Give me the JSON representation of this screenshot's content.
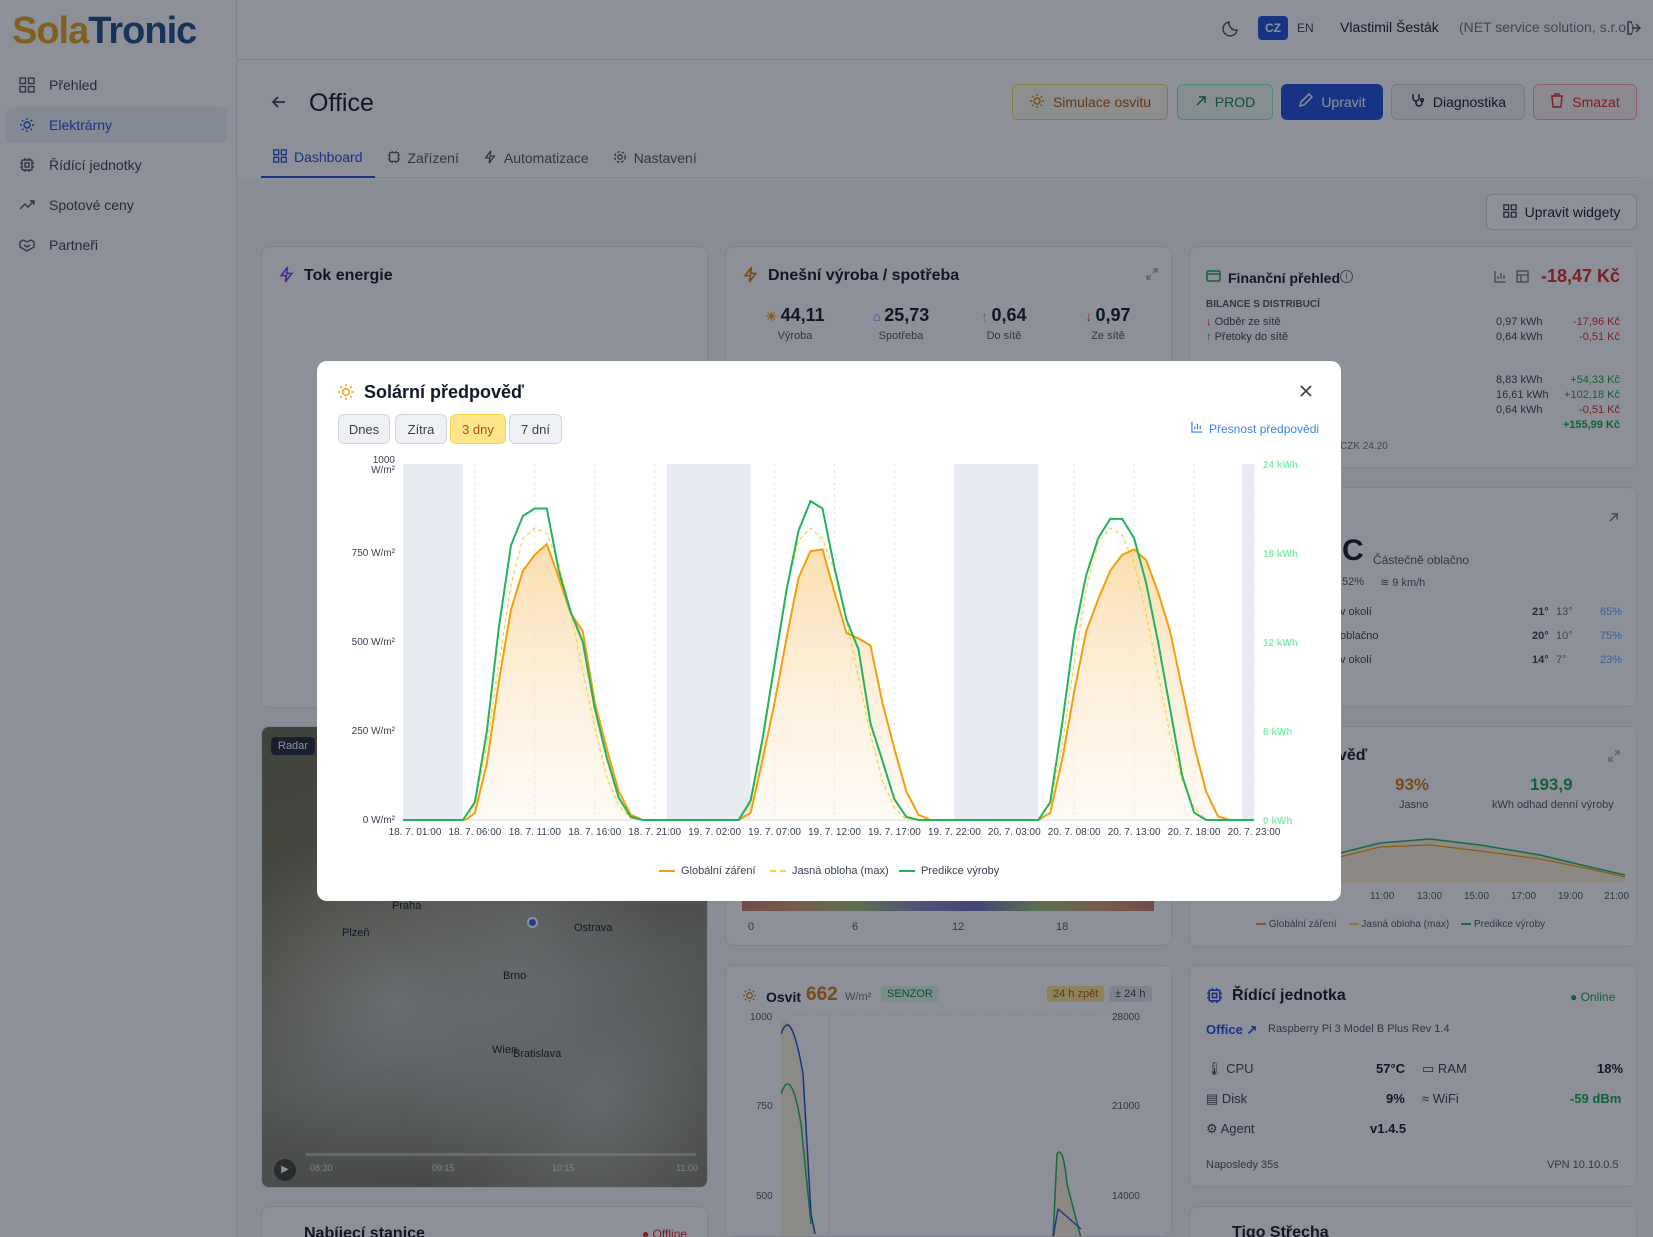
{
  "app": {
    "logo_part1": "Sola",
    "logo_part2": "Tronic"
  },
  "sidebar": {
    "items": [
      {
        "label": "Přehled",
        "icon": "grid-icon"
      },
      {
        "label": "Elektrárny",
        "icon": "sun-icon",
        "active": true
      },
      {
        "label": "Řídící jednotky",
        "icon": "cpu-icon"
      },
      {
        "label": "Spotové ceny",
        "icon": "trend-icon"
      },
      {
        "label": "Partneři",
        "icon": "handshake-icon"
      }
    ]
  },
  "header": {
    "lang_cz": "CZ",
    "lang_en": "EN",
    "user_name": "Vlastimil Šesták",
    "user_company": "(NET service solution, s.r.o.)"
  },
  "page": {
    "title": "Office",
    "buttons": {
      "simulate": "Simulace osvitu",
      "prod": "PROD",
      "edit": "Upravit",
      "diag": "Diagnostika",
      "delete": "Smazat"
    },
    "tabs": [
      "Dashboard",
      "Zařízení",
      "Automatizace",
      "Nastavení"
    ],
    "edit_widgets": "Upravit widgety"
  },
  "widgets": {
    "energy_flow": {
      "title": "Tok energie"
    },
    "today": {
      "title": "Dnešní výroba / spotřeba",
      "stats": [
        {
          "value": "44,11",
          "label": "Výroba"
        },
        {
          "value": "25,73",
          "label": "Spotřeba"
        },
        {
          "value": "0,64",
          "label": "Do sítě"
        },
        {
          "value": "0,97",
          "label": "Ze sítě"
        }
      ],
      "hours": [
        "0",
        "6",
        "12",
        "18"
      ]
    },
    "finance": {
      "title": "Finanční přehled",
      "total": "-18,47 Kč",
      "section": "BILANCE S DISTRIBUCÍ",
      "rows": [
        {
          "label": "Odběr ze sítě",
          "kwh": "0,97 kWh",
          "czk": "-17,96 Kč"
        },
        {
          "label": "Přetoky do sítě",
          "kwh": "0,64 kWh",
          "czk": "-0,51 Kč"
        }
      ],
      "extra": [
        {
          "kwh": "8,83 kWh",
          "czk": "+54,33 Kč"
        },
        {
          "kwh": "16,61 kWh",
          "czk": "+102,18 Kč"
        },
        {
          "kwh": "0,64 kWh",
          "czk": "-0,51 Kč"
        },
        {
          "kwh": "",
          "czk": "+155,99 Kč"
        }
      ],
      "footer": "CZK 24.20"
    },
    "weather": {
      "temp_unit": "°C",
      "condition": "Částečně oblačno",
      "humidity": "52%",
      "wind": "9 km/h",
      "rows": [
        {
          "label": "v okolí",
          "hi": "21°",
          "lo": "13°",
          "rain": "65%"
        },
        {
          "label": "oblačno",
          "hi": "20°",
          "lo": "10°",
          "rain": "75%"
        },
        {
          "label": "v okolí",
          "hi": "14°",
          "lo": "7°",
          "rain": "23%"
        }
      ]
    },
    "forecast_small": {
      "title_tail": "věď",
      "pct": "93%",
      "pct_label": "Jasno",
      "kwh": "193,9",
      "kwh_label": "kWh odhad denní výroby",
      "times": [
        "11:00",
        "13:00",
        "15:00",
        "17:00",
        "19:00",
        "21:00"
      ],
      "legend": [
        "Globální záření",
        "Jasná obloha (max)",
        "Predikce výroby"
      ]
    },
    "radar": {
      "badge": "Radar",
      "cities": [
        "Praha",
        "Plzeň",
        "Ostrava",
        "Brno",
        "Wien",
        "Bratislava"
      ],
      "times": [
        "08:30",
        "09:15",
        "10:15",
        "11:00"
      ]
    },
    "irradiance": {
      "title": "Osvit",
      "value": "662",
      "unit": "W/m²",
      "badge": "SENZOR",
      "btn1": "24 h zpět",
      "btn2": "± 24 h",
      "left_ticks": [
        "1000",
        "750",
        "500"
      ],
      "right_ticks": [
        "28000",
        "21000",
        "14000"
      ]
    },
    "control_unit": {
      "title": "Řídící jednotka",
      "status": "Online",
      "name": "Office",
      "model": "Raspberry Pi 3 Model B Plus Rev 1.4",
      "cpu_label": "CPU",
      "cpu": "57°C",
      "ram_label": "RAM",
      "ram": "18%",
      "disk_label": "Disk",
      "disk": "9%",
      "wifi_label": "WiFi",
      "wifi": "-59 dBm",
      "agent_label": "Agent",
      "agent": "v1.4.5",
      "last": "Naposledy 35s",
      "vpn": "VPN 10.10.0.5"
    },
    "charging": {
      "title": "Nabíjecí stanice",
      "status": "Offline"
    },
    "tigo": {
      "title": "Tigo Střecha"
    }
  },
  "modal": {
    "title": "Solární předpověď",
    "ranges": [
      "Dnes",
      "Zítra",
      "3 dny",
      "7 dní"
    ],
    "active_range": "3 dny",
    "accuracy_link": "Přesnost předpovědi"
  },
  "colors": {
    "global": "#f59e0b",
    "clear": "#fcd34d",
    "prediction": "#22b35e",
    "primary": "#1d4ed8",
    "danger": "#dc2626"
  },
  "chart_data": {
    "type": "line",
    "y_left": {
      "unit": "W/m²",
      "range": [
        0,
        1000
      ],
      "ticks": [
        "0 W/m²",
        "250 W/m²",
        "500 W/m²",
        "750 W/m²",
        "1000 W/m²"
      ]
    },
    "y_right": {
      "unit": "kWh",
      "range": [
        0,
        24
      ],
      "ticks": [
        "0 kWh",
        "6 kWh",
        "12 kWh",
        "18 kWh",
        "24 kWh"
      ]
    },
    "x_start": "18. 7. 00:00",
    "x_end": "20. 7. 23:00",
    "x_ticks": [
      {
        "h": 1,
        "label": "18. 7. 01:00"
      },
      {
        "h": 6,
        "label": "18. 7. 06:00"
      },
      {
        "h": 11,
        "label": "18. 7. 11:00"
      },
      {
        "h": 16,
        "label": "18. 7. 16:00"
      },
      {
        "h": 21,
        "label": "18. 7. 21:00"
      },
      {
        "h": 26,
        "label": "19. 7. 02:00"
      },
      {
        "h": 31,
        "label": "19. 7. 07:00"
      },
      {
        "h": 36,
        "label": "19. 7. 12:00"
      },
      {
        "h": 41,
        "label": "19. 7. 17:00"
      },
      {
        "h": 46,
        "label": "19. 7. 22:00"
      },
      {
        "h": 51,
        "label": "20. 7. 03:00"
      },
      {
        "h": 56,
        "label": "20. 7. 08:00"
      },
      {
        "h": 61,
        "label": "20. 7. 13:00"
      },
      {
        "h": 66,
        "label": "20. 7. 18:00"
      },
      {
        "h": 71,
        "label": "20. 7. 23:00"
      }
    ],
    "night_bands": [
      [
        0,
        5
      ],
      [
        22,
        29
      ],
      [
        46,
        53
      ],
      [
        70,
        71
      ]
    ],
    "series": [
      {
        "name": "Globální záření",
        "color": "#f59e0b",
        "axis": "left",
        "points": [
          [
            0,
            0
          ],
          [
            5.2,
            0
          ],
          [
            6,
            20
          ],
          [
            7,
            160
          ],
          [
            8,
            390
          ],
          [
            9,
            590
          ],
          [
            10,
            700
          ],
          [
            11,
            745
          ],
          [
            12,
            775
          ],
          [
            13,
            680
          ],
          [
            14,
            580
          ],
          [
            15,
            530
          ],
          [
            16,
            330
          ],
          [
            17,
            200
          ],
          [
            18,
            80
          ],
          [
            19,
            15
          ],
          [
            20,
            0
          ],
          [
            28,
            0
          ],
          [
            29,
            20
          ],
          [
            30,
            170
          ],
          [
            31,
            330
          ],
          [
            32,
            510
          ],
          [
            33,
            680
          ],
          [
            34,
            755
          ],
          [
            35,
            760
          ],
          [
            36,
            640
          ],
          [
            37,
            525
          ],
          [
            38,
            510
          ],
          [
            39,
            490
          ],
          [
            40,
            330
          ],
          [
            41,
            200
          ],
          [
            42,
            80
          ],
          [
            43,
            15
          ],
          [
            44,
            0
          ],
          [
            53,
            0
          ],
          [
            54,
            20
          ],
          [
            55,
            170
          ],
          [
            56,
            360
          ],
          [
            57,
            530
          ],
          [
            58,
            620
          ],
          [
            59,
            700
          ],
          [
            60,
            745
          ],
          [
            61,
            760
          ],
          [
            62,
            730
          ],
          [
            63,
            640
          ],
          [
            64,
            530
          ],
          [
            65,
            370
          ],
          [
            66,
            210
          ],
          [
            67,
            80
          ],
          [
            68,
            10
          ],
          [
            69,
            0
          ],
          [
            71,
            0
          ]
        ]
      },
      {
        "name": "Jasná obloha (max)",
        "color": "#fcd34d",
        "axis": "left",
        "points": [
          [
            0,
            0
          ],
          [
            5.3,
            0
          ],
          [
            6,
            45
          ],
          [
            7,
            210
          ],
          [
            8,
            440
          ],
          [
            9,
            660
          ],
          [
            10,
            790
          ],
          [
            11,
            820
          ],
          [
            12,
            805
          ],
          [
            13,
            720
          ],
          [
            14,
            580
          ],
          [
            15,
            420
          ],
          [
            16,
            260
          ],
          [
            17,
            120
          ],
          [
            18,
            40
          ],
          [
            19,
            5
          ],
          [
            20,
            0
          ],
          [
            28,
            0
          ],
          [
            29,
            45
          ],
          [
            30,
            210
          ],
          [
            31,
            440
          ],
          [
            32,
            650
          ],
          [
            33,
            785
          ],
          [
            34,
            820
          ],
          [
            35,
            790
          ],
          [
            36,
            700
          ],
          [
            37,
            560
          ],
          [
            38,
            400
          ],
          [
            39,
            240
          ],
          [
            40,
            110
          ],
          [
            41,
            35
          ],
          [
            42,
            0
          ],
          [
            53,
            0
          ],
          [
            54,
            45
          ],
          [
            55,
            210
          ],
          [
            56,
            440
          ],
          [
            57,
            650
          ],
          [
            58,
            780
          ],
          [
            59,
            820
          ],
          [
            60,
            800
          ],
          [
            61,
            720
          ],
          [
            62,
            580
          ],
          [
            63,
            410
          ],
          [
            64,
            240
          ],
          [
            65,
            110
          ],
          [
            66,
            35
          ],
          [
            67,
            0
          ],
          [
            71,
            0
          ]
        ]
      },
      {
        "name": "Predikce výroby",
        "color": "#22b35e",
        "axis": "right",
        "points": [
          [
            0,
            0
          ],
          [
            5,
            0
          ],
          [
            6,
            1.2
          ],
          [
            7,
            6
          ],
          [
            8,
            13
          ],
          [
            9,
            18.5
          ],
          [
            10,
            20.5
          ],
          [
            11,
            21
          ],
          [
            12,
            21
          ],
          [
            13,
            16.8
          ],
          [
            14,
            14
          ],
          [
            15,
            12
          ],
          [
            16,
            7.5
          ],
          [
            17,
            4.2
          ],
          [
            18,
            1.5
          ],
          [
            19,
            0.2
          ],
          [
            20,
            0
          ],
          [
            28,
            0
          ],
          [
            29,
            1.3
          ],
          [
            30,
            5.5
          ],
          [
            31,
            10.5
          ],
          [
            32,
            15.5
          ],
          [
            33,
            19.5
          ],
          [
            34,
            21.5
          ],
          [
            35,
            21
          ],
          [
            36,
            17
          ],
          [
            37,
            13.5
          ],
          [
            38,
            11.5
          ],
          [
            39,
            6.5
          ],
          [
            40,
            4
          ],
          [
            41,
            1.4
          ],
          [
            42,
            0.2
          ],
          [
            43,
            0
          ],
          [
            53,
            0
          ],
          [
            54,
            1.2
          ],
          [
            55,
            6.5
          ],
          [
            56,
            12.5
          ],
          [
            57,
            16.5
          ],
          [
            58,
            19
          ],
          [
            59,
            20.3
          ],
          [
            60,
            20.3
          ],
          [
            61,
            19
          ],
          [
            62,
            16
          ],
          [
            63,
            12
          ],
          [
            64,
            7.5
          ],
          [
            65,
            3
          ],
          [
            66,
            0.5
          ],
          [
            67,
            0
          ],
          [
            71,
            0
          ]
        ]
      }
    ],
    "legend": [
      "Globální záření",
      "Jasná obloha (max)",
      "Predikce výroby"
    ]
  }
}
